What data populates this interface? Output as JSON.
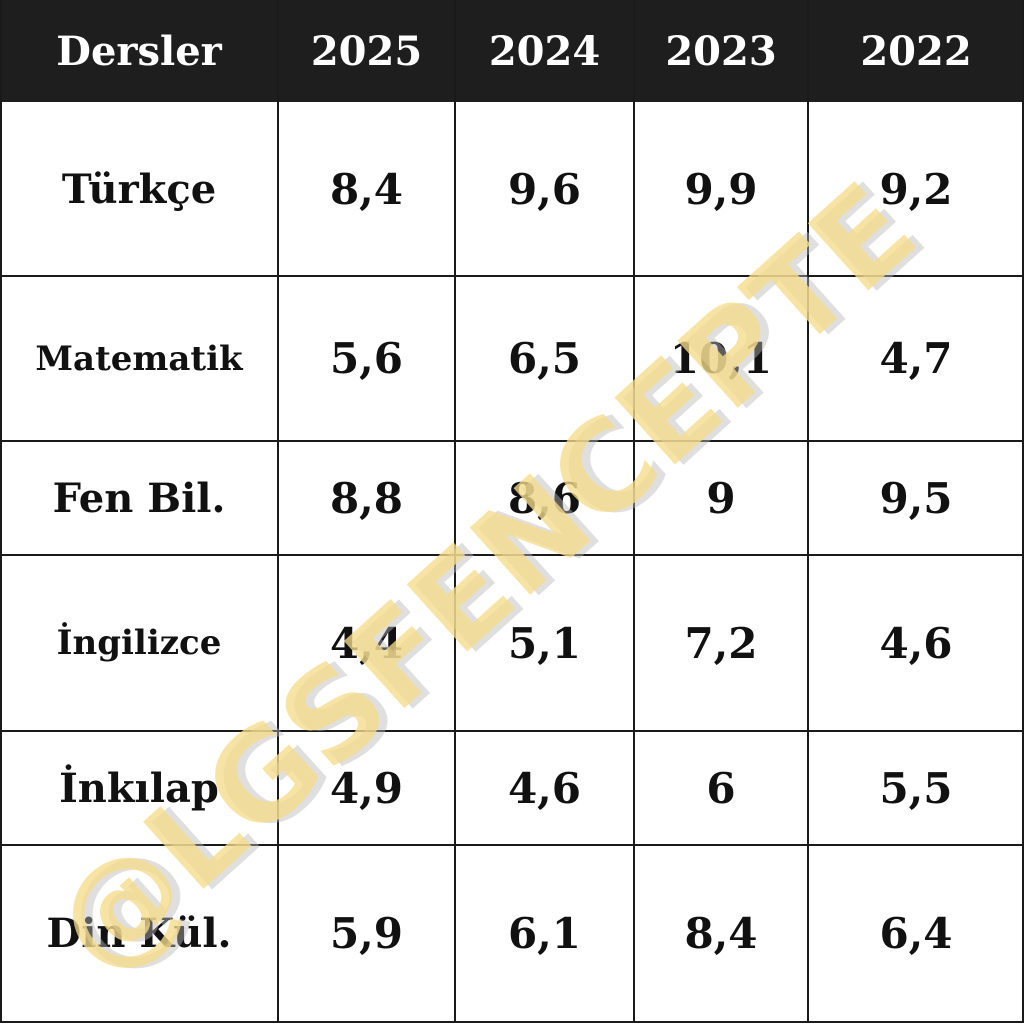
{
  "chart_data": {
    "type": "table",
    "columns": [
      "Dersler",
      "2025",
      "2024",
      "2023",
      "2022"
    ],
    "rows": [
      {
        "label": "Türkçe",
        "values": [
          "8,4",
          "9,6",
          "9,9",
          "9,2"
        ]
      },
      {
        "label": "Matematik",
        "values": [
          "5,6",
          "6,5",
          "10,1",
          "4,7"
        ]
      },
      {
        "label": "Fen Bil.",
        "values": [
          "8,8",
          "8,6",
          "9",
          "9,5"
        ]
      },
      {
        "label": "İngilizce",
        "values": [
          "4,4",
          "5,1",
          "7,2",
          "4,6"
        ]
      },
      {
        "label": "İnkılap",
        "values": [
          "4,9",
          "4,6",
          "6",
          "5,5"
        ]
      },
      {
        "label": "Din Kül.",
        "values": [
          "5,9",
          "6,1",
          "8,4",
          "6,4"
        ]
      }
    ]
  },
  "watermark": {
    "text": "@LGSFENCEPTE",
    "color": "#f5dc8c",
    "shadow_color": "#b8b8b8"
  },
  "colors": {
    "header_bg": "#1e1e1e",
    "header_text": "#ffffff",
    "body_text": "#111111",
    "grid": "#1a1a1a"
  }
}
